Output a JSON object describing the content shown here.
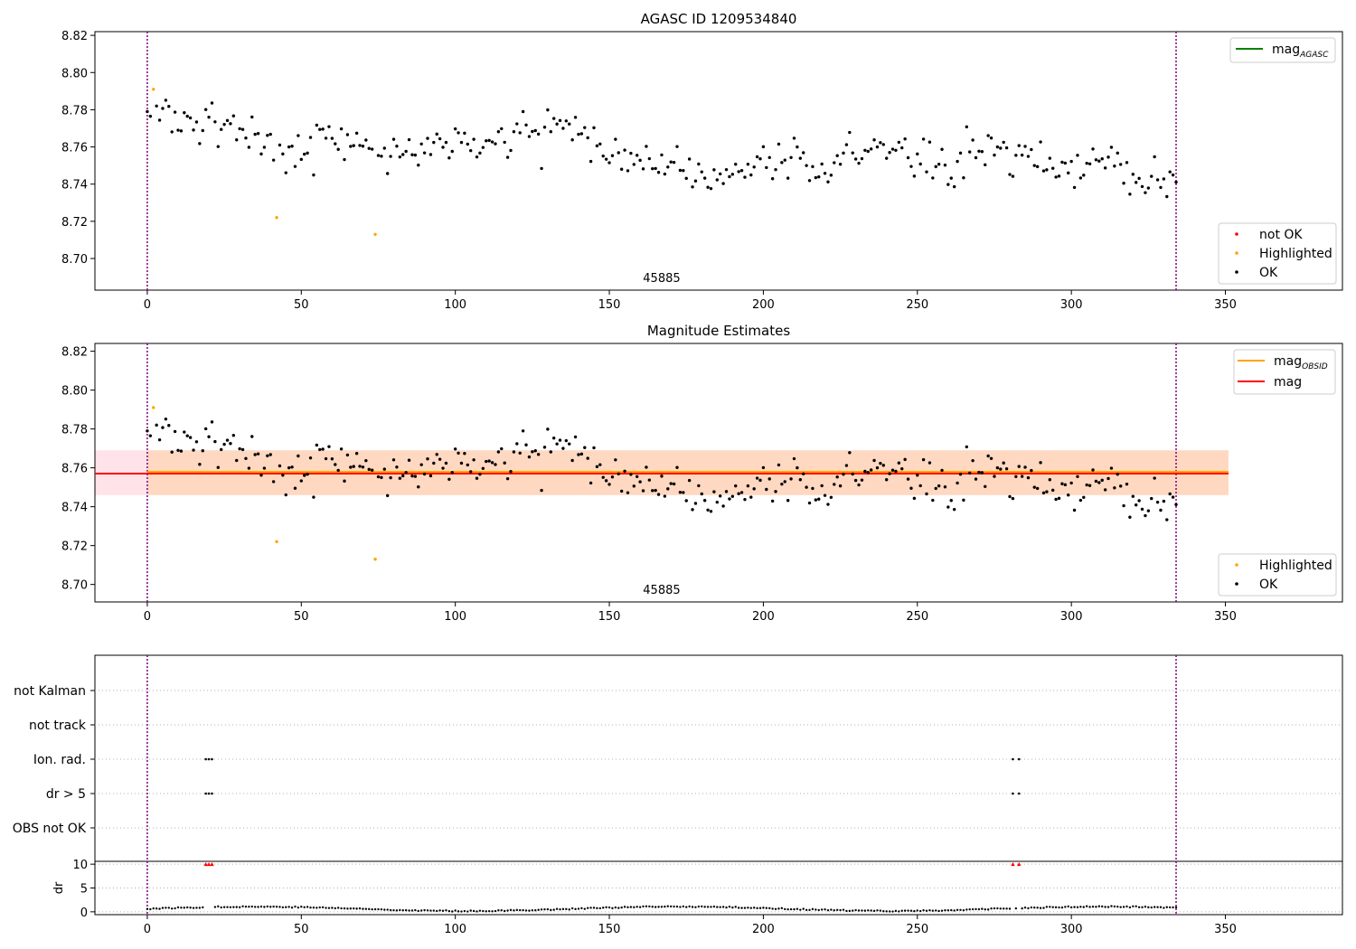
{
  "figure": {
    "title_top": "AGASC ID 1209534840",
    "title_mid": "Magnitude Estimates"
  },
  "colors": {
    "ok": "#000000",
    "highlighted": "#ffa500",
    "not_ok": "#ff0000",
    "agasc_line": "#008000",
    "obsid_line": "#ffa500",
    "mag_line": "#ff0000",
    "mag_band": "#ffc0cb",
    "obsid_band": "#ffd0a8",
    "vline": "#800080",
    "grid": "#b0b0b0"
  },
  "chart_data": [
    {
      "type": "scatter",
      "title": "AGASC ID 1209534840",
      "xlim": [
        -17,
        388
      ],
      "ylim": [
        8.683,
        8.822
      ],
      "xticks": [
        0,
        50,
        100,
        150,
        200,
        250,
        300,
        350
      ],
      "yticks": [
        8.7,
        8.72,
        8.74,
        8.76,
        8.78,
        8.8,
        8.82
      ],
      "ytick_labels": [
        "8.70",
        "8.72",
        "8.74",
        "8.76",
        "8.78",
        "8.80",
        "8.82"
      ],
      "annotation": "45885",
      "annotation_x": 167,
      "vlines": [
        0,
        334
      ],
      "legend_upper": {
        "placement": "top-right",
        "entries": [
          {
            "label": "mag",
            "sub": "AGASC",
            "kind": "line",
            "color": "#008000"
          }
        ]
      },
      "legend_lower": {
        "placement": "bottom-right",
        "entries": [
          {
            "label": "not OK",
            "kind": "dot",
            "color": "#ff0000"
          },
          {
            "label": "Highlighted",
            "kind": "dot",
            "color": "#ffa500"
          },
          {
            "label": "OK",
            "kind": "dot",
            "color": "#000000"
          }
        ]
      },
      "highlighted": {
        "x": [
          2,
          42,
          74
        ],
        "y": [
          8.791,
          8.722,
          8.713
        ]
      }
    },
    {
      "type": "scatter",
      "title": "Magnitude Estimates",
      "xlim": [
        -17,
        388
      ],
      "ylim": [
        8.691,
        8.824
      ],
      "xticks": [
        0,
        50,
        100,
        150,
        200,
        250,
        300,
        350
      ],
      "yticks": [
        8.7,
        8.72,
        8.74,
        8.76,
        8.78,
        8.8,
        8.82
      ],
      "ytick_labels": [
        "8.70",
        "8.72",
        "8.74",
        "8.76",
        "8.78",
        "8.80",
        "8.82"
      ],
      "annotation": "45885",
      "annotation_x": 167,
      "vlines": [
        0,
        334
      ],
      "mag": 8.7575,
      "mag_band": [
        8.746,
        8.769
      ],
      "mag_band_x": [
        -17,
        351
      ],
      "obsid_mag": 8.7575,
      "obsid_band": [
        8.746,
        8.769
      ],
      "obsid_band_x": [
        0,
        351
      ],
      "legend_upper": {
        "placement": "top-right",
        "entries": [
          {
            "label": "mag",
            "sub": "OBSID",
            "kind": "line",
            "color": "#ffa500"
          },
          {
            "label": "mag",
            "kind": "line",
            "color": "#ff0000"
          }
        ]
      },
      "legend_lower": {
        "placement": "bottom-right",
        "entries": [
          {
            "label": "Highlighted",
            "kind": "dot",
            "color": "#ffa500"
          },
          {
            "label": "OK",
            "kind": "dot",
            "color": "#000000"
          }
        ]
      },
      "highlighted": {
        "x": [
          2,
          42,
          74
        ],
        "y": [
          8.791,
          8.722,
          8.713
        ]
      }
    },
    {
      "type": "scatter",
      "title": "",
      "xlim": [
        -17,
        388
      ],
      "categories": [
        "not Kalman",
        "not track",
        "Ion. rad.",
        "dr > 5",
        "OBS not OK"
      ],
      "vlines": [
        0,
        334
      ],
      "flags": {
        "Ion. rad.": [
          19,
          20,
          21,
          281,
          283
        ],
        "dr > 5": [
          19,
          20,
          21,
          281,
          283
        ]
      }
    },
    {
      "type": "scatter",
      "title": "",
      "ylabel": "dr",
      "xlim": [
        -17,
        388
      ],
      "ylim": [
        -0.6,
        10.6
      ],
      "xticks": [
        0,
        50,
        100,
        150,
        200,
        250,
        300,
        350
      ],
      "yticks": [
        0,
        5,
        10
      ],
      "vlines": [
        0,
        334
      ],
      "clipped": {
        "x": [
          19,
          20,
          21,
          281,
          283
        ],
        "y": [
          10,
          10,
          10,
          10,
          10
        ]
      }
    }
  ]
}
